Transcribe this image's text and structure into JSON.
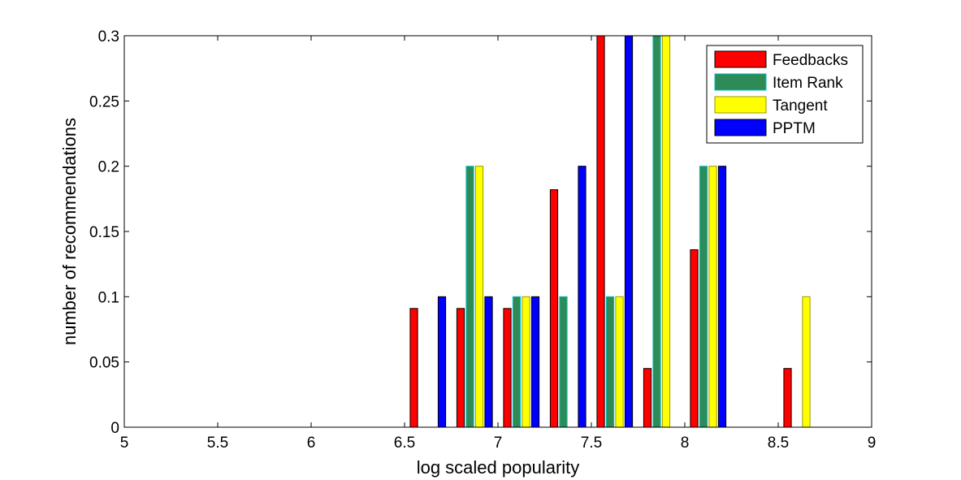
{
  "chart_data": {
    "type": "bar",
    "title": "",
    "xlabel": "log scaled popularity",
    "ylabel": "number of recommendations",
    "xlim": [
      5,
      9
    ],
    "ylim": [
      0,
      0.3
    ],
    "xticks": [
      "5",
      "5.5",
      "6",
      "6.5",
      "7",
      "7.5",
      "8",
      "8.5",
      "9"
    ],
    "yticks": [
      "0",
      "0.05",
      "0.1",
      "0.15",
      "0.2",
      "0.25",
      "0.3"
    ],
    "grid": false,
    "legend_position": "top-right",
    "bin_centers": [
      5.125,
      5.375,
      5.625,
      5.875,
      6.125,
      6.375,
      6.625,
      6.875,
      7.125,
      7.375,
      7.625,
      7.875,
      8.125,
      8.375,
      8.625,
      8.875
    ],
    "series": [
      {
        "name": "Feedbacks",
        "color": "#ff0000",
        "edge": "#000000",
        "values": [
          0,
          0,
          0,
          0,
          0,
          0,
          0.091,
          0.091,
          0.091,
          0.182,
          0.3,
          0.045,
          0.136,
          0,
          0.045,
          0
        ]
      },
      {
        "name": "Item Rank",
        "color": "#2e8b57",
        "edge": "#00bfbf",
        "values": [
          0,
          0,
          0,
          0,
          0,
          0,
          0,
          0.2,
          0.1,
          0.1,
          0.1,
          0.3,
          0.2,
          0,
          0,
          0
        ]
      },
      {
        "name": "Tangent",
        "color": "#ffff00",
        "edge": "#999900",
        "values": [
          0,
          0,
          0,
          0,
          0,
          0,
          0,
          0.2,
          0.1,
          0,
          0.1,
          0.3,
          0.2,
          0,
          0.1,
          0
        ]
      },
      {
        "name": "PPTM",
        "color": "#0000ff",
        "edge": "#000000",
        "values": [
          0,
          0,
          0,
          0,
          0,
          0,
          0.1,
          0.1,
          0.1,
          0.2,
          0.3,
          0,
          0.2,
          0,
          0,
          0
        ]
      }
    ]
  }
}
